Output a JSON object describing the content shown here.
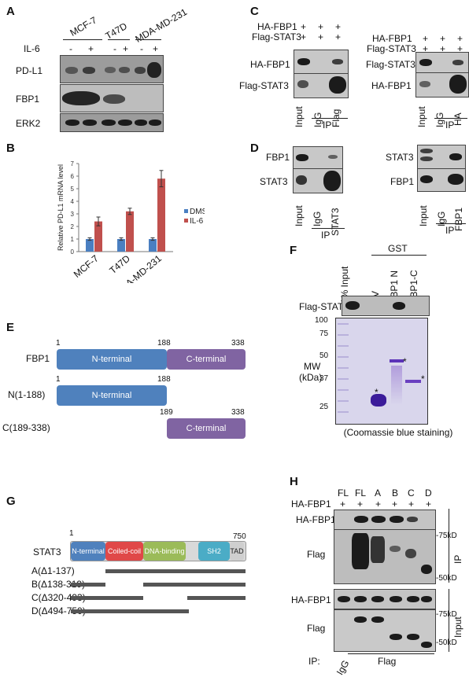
{
  "panels": {
    "a": "A",
    "b": "B",
    "c": "C",
    "d": "D",
    "e": "E",
    "f": "F",
    "g": "G",
    "h": "H"
  },
  "panel_a": {
    "cell_lines": [
      "MCF-7",
      "T47D",
      "MDA-MD-231"
    ],
    "treatment": "IL-6",
    "signs": [
      "-",
      "+",
      "-",
      "+",
      "-",
      "+"
    ],
    "rows": [
      "PD-L1",
      "FBP1",
      "ERK2"
    ]
  },
  "panel_c": {
    "left": {
      "rows": [
        "HA-FBP1",
        "Flag-STAT3"
      ],
      "blots": [
        "HA-FBP1",
        "Flag-STAT3"
      ],
      "signs": [
        "+",
        "+",
        "+"
      ],
      "lanes": [
        "Input",
        "IgG",
        "Flag"
      ],
      "ip": "IP"
    },
    "right": {
      "rows": [
        "HA-FBP1",
        "Flag-STAT3"
      ],
      "blots": [
        "Flag-STAT3",
        "HA-FBP1"
      ],
      "signs": [
        "+",
        "+",
        "+"
      ],
      "lanes": [
        "Input",
        "IgG",
        "HA"
      ],
      "ip": "IP"
    }
  },
  "panel_d": {
    "left": {
      "blots": [
        "FBP1",
        "STAT3"
      ],
      "lanes": [
        "Input",
        "IgG",
        "STAT3"
      ],
      "ip": "IP"
    },
    "right": {
      "blots": [
        "STAT3",
        "FBP1"
      ],
      "lanes": [
        "Input",
        "IgG",
        "FBP1"
      ],
      "ip": "IP"
    }
  },
  "panel_e": {
    "rows": [
      "FBP1",
      "N(1-188)",
      "C(189-338)"
    ],
    "domains": [
      "N-terminal",
      "C-terminal"
    ],
    "positions": [
      "1",
      "188",
      "338",
      "1",
      "188",
      "189",
      "338"
    ]
  },
  "panel_f": {
    "gst": "GST",
    "lanes": [
      "1% Input",
      "EV",
      "FBP1 N",
      "FBP1-C"
    ],
    "blot": "Flag-STAT3",
    "mw_label": "MW",
    "mw_unit": "(kDa)",
    "markers": [
      "100",
      "75",
      "50",
      "37",
      "25"
    ],
    "stars": [
      "*",
      "*",
      "*"
    ],
    "caption": "(Coomassie blue staining)"
  },
  "panel_g": {
    "protein": "STAT3",
    "start": "1",
    "end": "750",
    "domains": [
      "N-terminal",
      "Coiled-coil",
      "DNA-binding",
      "SH2",
      "TAD"
    ],
    "mutants": [
      "A(Δ1-137)",
      "B(Δ138-319)",
      "C(Δ320-493)",
      "D(Δ494-750)"
    ]
  },
  "panel_h": {
    "lanes": [
      "FL",
      "FL",
      "A",
      "B",
      "C",
      "D"
    ],
    "row": "HA-FBP1",
    "signs": [
      "+",
      "+",
      "+",
      "+",
      "+",
      "+"
    ],
    "blots": [
      "HA-FBP1",
      "Flag",
      "HA-FBP1",
      "Flag"
    ],
    "markers": [
      "-75kD",
      "-50kD",
      "-75kD",
      "-50kD"
    ],
    "section_ip": "IP",
    "section_input": "Input",
    "bottom_ip": "IP:",
    "bottom_lanes": [
      "IgG",
      "Flag"
    ]
  },
  "chart_data": {
    "type": "bar",
    "categories": [
      "MCF-7",
      "T47D",
      "MDA-MD-231"
    ],
    "ylabel": "Relative PD-L1 mRNA level",
    "ylim": [
      0,
      7
    ],
    "yticks": [
      "0",
      "1",
      "2",
      "3",
      "4",
      "5",
      "6",
      "7"
    ],
    "series": [
      {
        "name": "DMSO",
        "values": [
          1.0,
          1.0,
          1.0
        ],
        "errors": [
          0.1,
          0.1,
          0.1
        ],
        "color": "#4a7fc1"
      },
      {
        "name": "IL-6",
        "values": [
          2.4,
          3.2,
          5.8
        ],
        "errors": [
          0.35,
          0.25,
          0.65
        ],
        "color": "#c0504d"
      }
    ],
    "legend": "right"
  }
}
